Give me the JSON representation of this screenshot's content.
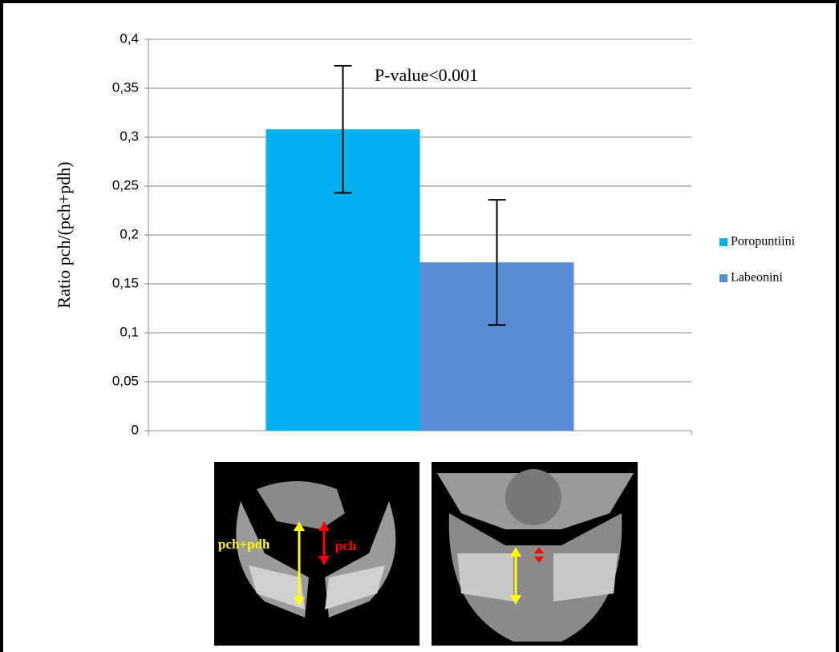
{
  "chart_data": {
    "type": "bar",
    "y_label": "Ratio pch/(pch+pdh)",
    "annotation": "P-value<0.001",
    "categories": [
      null
    ],
    "series": [
      {
        "name": "Poropuntiini",
        "color": "#00b0f0",
        "values": [
          0.308
        ],
        "errors": [
          0.065
        ]
      },
      {
        "name": "Labeonini",
        "color": "#558ed5",
        "values": [
          0.172
        ],
        "errors": [
          0.064
        ]
      }
    ],
    "ylim": [
      0,
      0.4
    ],
    "yticks": [
      0,
      {
        "value": 0.05,
        "label": "0,05"
      },
      {
        "value": 0.1,
        "label": "0,1"
      },
      {
        "value": 0.15,
        "label": "0,15"
      },
      {
        "value": 0.2,
        "label": "0,2"
      },
      {
        "value": 0.25,
        "label": "0,25"
      },
      {
        "value": 0.3,
        "label": "0,3"
      },
      {
        "value": 0.35,
        "label": "0,35"
      },
      {
        "value": 0.4,
        "label": "0,4"
      }
    ],
    "grid": true,
    "legend": "right"
  },
  "image_labels": [
    "pch+pdh",
    "pch"
  ]
}
